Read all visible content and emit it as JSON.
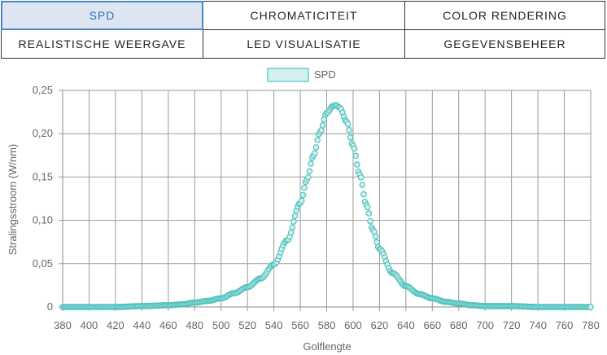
{
  "tabs": [
    {
      "label": "SPD",
      "active": true
    },
    {
      "label": "CHROMATICITEIT",
      "active": false
    },
    {
      "label": "COLOR RENDERING",
      "active": false
    },
    {
      "label": "REALISTISCHE WEERGAVE",
      "active": false
    },
    {
      "label": "LED VISUALISATIE",
      "active": false
    },
    {
      "label": "GEGEVENSBEHEER",
      "active": false
    }
  ],
  "colors": {
    "series": "#4fc2bd",
    "series_fill": "#d6f0ef",
    "active_tab": "#4d86c8"
  },
  "chart_data": {
    "type": "scatter",
    "title": "",
    "xlabel": "Golflengte",
    "ylabel": "Stralingsstroom (W/nm)",
    "xlim": [
      380,
      780
    ],
    "ylim": [
      0,
      0.25
    ],
    "xticks": [
      380,
      400,
      420,
      440,
      460,
      480,
      500,
      520,
      540,
      560,
      580,
      600,
      620,
      640,
      660,
      680,
      700,
      720,
      740,
      760,
      780
    ],
    "yticks": [
      0,
      0.05,
      0.1,
      0.15,
      0.2,
      0.25
    ],
    "ytick_labels": [
      "0",
      "0,05",
      "0,10",
      "0,15",
      "0,20",
      "0,25"
    ],
    "legend_position": "top-center",
    "grid": true,
    "series": [
      {
        "name": "SPD",
        "peak_x": 587,
        "peak_y": 0.233,
        "x": [
          380,
          400,
          420,
          440,
          460,
          470,
          480,
          490,
          500,
          510,
          520,
          530,
          540,
          550,
          560,
          565,
          570,
          575,
          580,
          585,
          587,
          590,
          595,
          600,
          605,
          610,
          615,
          620,
          630,
          640,
          650,
          660,
          670,
          680,
          690,
          700,
          720,
          740,
          760,
          780
        ],
        "values": [
          0,
          0,
          0,
          0.001,
          0.002,
          0.003,
          0.005,
          0.007,
          0.01,
          0.016,
          0.023,
          0.033,
          0.049,
          0.077,
          0.12,
          0.147,
          0.175,
          0.202,
          0.224,
          0.232,
          0.233,
          0.23,
          0.214,
          0.186,
          0.153,
          0.118,
          0.089,
          0.067,
          0.039,
          0.024,
          0.015,
          0.01,
          0.006,
          0.004,
          0.002,
          0.001,
          0.001,
          0,
          0,
          0
        ]
      }
    ]
  }
}
